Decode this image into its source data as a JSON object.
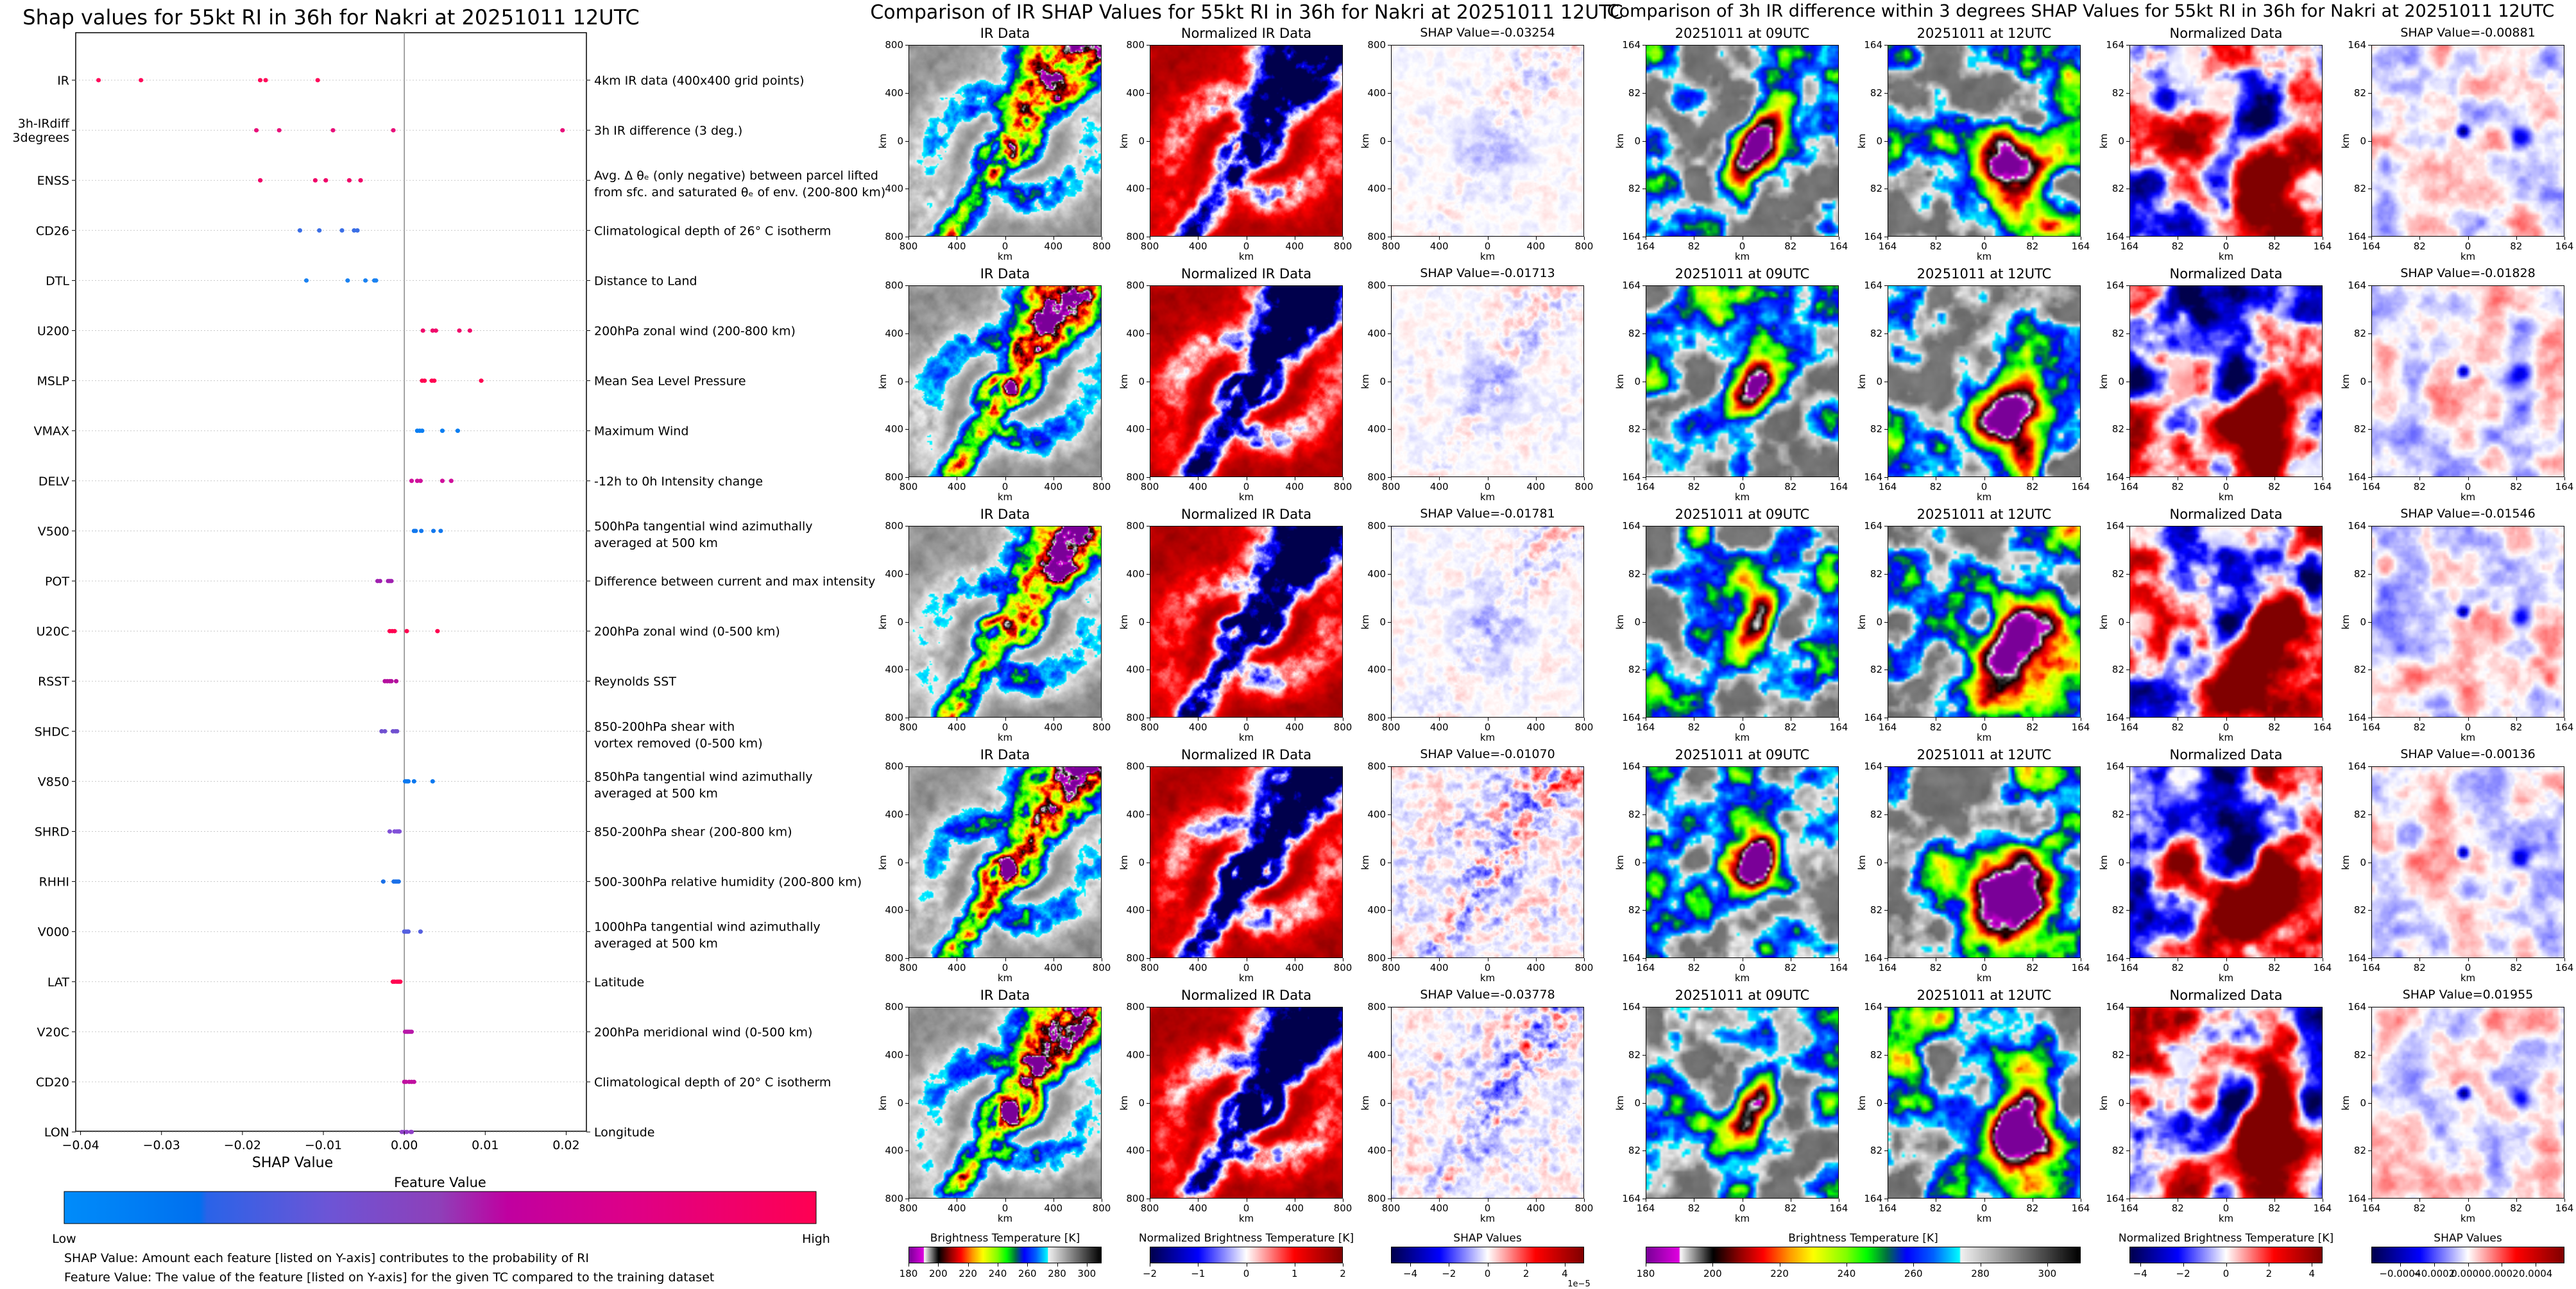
{
  "chart_data": {
    "type": "scatter",
    "title": "Shap values for 55kt RI in 36h for Nakri at 20251011 12UTC",
    "xlabel": "SHAP Value",
    "xlim": [
      -0.0406,
      0.0225
    ],
    "xticks": [
      -0.04,
      -0.03,
      -0.02,
      -0.01,
      0.0,
      0.01,
      0.02
    ],
    "xtick_labels": [
      "−0.04",
      "−0.03",
      "−0.02",
      "−0.01",
      "0.00",
      "0.01",
      "0.02"
    ],
    "zero_line": true,
    "grid": "dotted horizontal per feature",
    "features": [
      {
        "code": "IR",
        "description": [
          "4km IR data (400x400 grid points)"
        ],
        "color": "#ff0a5a",
        "shap_values": [
          -0.03778,
          -0.03254,
          -0.01781,
          -0.01713,
          -0.0107
        ]
      },
      {
        "code": "3h-IRdiff\n3degrees",
        "description": [
          "3h IR difference (3 deg.)"
        ],
        "color": "#e8107a",
        "shap_values": [
          -0.01828,
          -0.01546,
          -0.00881,
          -0.00136,
          0.01955
        ]
      },
      {
        "code": "ENSS",
        "description": [
          "Avg. Δ θₑ (only negative) between parcel lifted",
          "from sfc. and saturated θₑ of env. (200-800 km)"
        ],
        "color": "#f00068",
        "shap_values": [
          -0.0178,
          -0.011,
          -0.0097,
          -0.0068,
          -0.0054
        ]
      },
      {
        "code": "CD26",
        "description": [
          "Climatological depth of 26° C isotherm"
        ],
        "color": "#3a6ee6",
        "shap_values": [
          -0.0129,
          -0.0105,
          -0.0077,
          -0.0062,
          -0.0058
        ]
      },
      {
        "code": "DTL",
        "description": [
          "Distance to Land"
        ],
        "color": "#1a82f2",
        "shap_values": [
          -0.0121,
          -0.007,
          -0.0048,
          -0.0037,
          -0.0035
        ]
      },
      {
        "code": "U200",
        "description": [
          "200hPa zonal wind (200-800 km)"
        ],
        "color": "#f0086a",
        "shap_values": [
          0.0023,
          0.0035,
          0.0039,
          0.0068,
          0.0081
        ]
      },
      {
        "code": "MSLP",
        "description": [
          "Mean Sea Level Pressure"
        ],
        "color": "#ff0050",
        "shap_values": [
          0.0022,
          0.0025,
          0.0034,
          0.0037,
          0.0095
        ]
      },
      {
        "code": "VMAX",
        "description": [
          "Maximum Wind"
        ],
        "color": "#0a7ef2",
        "shap_values": [
          0.0016,
          0.0019,
          0.0022,
          0.0047,
          0.0066
        ]
      },
      {
        "code": "DELV",
        "description": [
          "-12h to 0h Intensity change"
        ],
        "color": "#d0109c",
        "shap_values": [
          0.0009,
          0.0016,
          0.002,
          0.0047,
          0.0058
        ]
      },
      {
        "code": "V500",
        "description": [
          "500hPa tangential wind azimuthally",
          "averaged at 500 km"
        ],
        "color": "#1278ee",
        "shap_values": [
          0.0012,
          0.0014,
          0.0021,
          0.0036,
          0.0045
        ]
      },
      {
        "code": "POT",
        "description": [
          "Difference between current and max intensity"
        ],
        "color": "#a020b0",
        "shap_values": [
          -0.0033,
          -0.003,
          -0.002,
          -0.0018,
          -0.0016
        ]
      },
      {
        "code": "U20C",
        "description": [
          "200hPa zonal wind (0-500 km)"
        ],
        "color": "#ff0050",
        "shap_values": [
          -0.0018,
          -0.0015,
          -0.0012,
          0.0003,
          0.0041
        ]
      },
      {
        "code": "RSST",
        "description": [
          "Reynolds SST"
        ],
        "color": "#b4109e",
        "shap_values": [
          -0.0024,
          -0.0021,
          -0.0018,
          -0.0016,
          -0.001
        ]
      },
      {
        "code": "SHDC",
        "description": [
          "850-200hPa shear with",
          "vortex removed (0-500 km)"
        ],
        "color": "#7050d0",
        "shap_values": [
          -0.0028,
          -0.0024,
          -0.0014,
          -0.0011,
          -0.0009
        ]
      },
      {
        "code": "V850",
        "description": [
          "850hPa tangential wind azimuthally",
          "averaged at 500 km"
        ],
        "color": "#0a78f0",
        "shap_values": [
          0.0001,
          0.0003,
          0.0005,
          0.0012,
          0.0035
        ]
      },
      {
        "code": "SHRD",
        "description": [
          "850-200hPa shear (200-800 km)"
        ],
        "color": "#8050d8",
        "shap_values": [
          -0.0018,
          -0.0012,
          -0.0009,
          -0.0007,
          -0.0006
        ]
      },
      {
        "code": "RHHI",
        "description": [
          "500-300hPa relative humidity (200-800 km)"
        ],
        "color": "#1a70e8",
        "shap_values": [
          -0.0026,
          -0.0013,
          -0.0011,
          -0.0009,
          -0.0007
        ]
      },
      {
        "code": "V000",
        "description": [
          "1000hPa tangential wind azimuthally",
          "averaged at 500 km"
        ],
        "color": "#5560e0",
        "shap_values": [
          0.0,
          0.0002,
          0.0004,
          0.0005,
          0.002
        ]
      },
      {
        "code": "LAT",
        "description": [
          "Latitude"
        ],
        "color": "#ff0050",
        "shap_values": [
          -0.0014,
          -0.0012,
          -0.0009,
          -0.0007,
          -0.0005
        ]
      },
      {
        "code": "V20C",
        "description": [
          "200hPa meridional wind (0-500 km)"
        ],
        "color": "#b818a8",
        "shap_values": [
          0.0001,
          0.0003,
          0.0005,
          0.0007,
          0.0009
        ]
      },
      {
        "code": "CD20",
        "description": [
          "Climatological depth of 20° C isotherm"
        ],
        "color": "#c010a0",
        "shap_values": [
          0.0,
          0.0002,
          0.0006,
          0.0009,
          0.0012
        ]
      },
      {
        "code": "LON",
        "description": [
          "Longitude"
        ],
        "color": "#9040c8",
        "shap_values": [
          -0.0003,
          0.0,
          0.0003,
          0.0008,
          0.0009
        ]
      }
    ],
    "colorbar": {
      "title": "Feature Value",
      "low_label": "Low",
      "high_label": "High",
      "colors": [
        "#008cfa",
        "#0070ef",
        "#2a63e8",
        "#6c55d6",
        "#8f3fb8",
        "#c000a0",
        "#dd0088",
        "#ff0052"
      ]
    },
    "notes": [
      "SHAP Value: Amount each feature [listed on Y-axis] contributes to the probability of RI",
      "Feature Value: The value of the feature [listed on Y-axis] for the given TC compared to the training dataset"
    ]
  },
  "ir_comparison": {
    "title": "Comparison of IR SHAP Values for 55kt RI in 36h for Nakri at 20251011 12UTC",
    "column_titles": [
      "IR Data",
      "Normalized IR Data"
    ],
    "shap_titles": [
      "SHAP Value=-0.03254",
      "SHAP Value=-0.01713",
      "SHAP Value=-0.01781",
      "SHAP Value=-0.01070",
      "SHAP Value=-0.03778"
    ],
    "axis_label": "km",
    "ticks": [
      "800",
      "400",
      "0",
      "400",
      "800"
    ],
    "colorbars": [
      {
        "title": "Brightness Temperature [K]",
        "cmap": "brightness-temperature",
        "range": [
          180,
          310
        ],
        "ticks": [
          180,
          200,
          220,
          240,
          260,
          280,
          300
        ],
        "tick_labels": [
          "180",
          "200",
          "220",
          "240",
          "260",
          "280",
          "300"
        ]
      },
      {
        "title": "Normalized Brightness Temperature [K]",
        "cmap": "seismic",
        "range": [
          -2,
          2
        ],
        "ticks": [
          -2,
          -1,
          0,
          1,
          2
        ],
        "tick_labels": [
          "−2",
          "−1",
          "0",
          "1",
          "2"
        ]
      },
      {
        "title": "SHAP Values",
        "cmap": "seismic",
        "range": [
          -5,
          5
        ],
        "ticks": [
          -4,
          -2,
          0,
          2,
          4
        ],
        "tick_labels": [
          "−4",
          "−2",
          "0",
          "2",
          "4"
        ],
        "offset_label": "1e−5"
      }
    ]
  },
  "irdiff_comparison": {
    "title": "Comparison of 3h IR difference within 3 degrees SHAP Values for 55kt RI in 36h for Nakri at 20251011 12UTC",
    "column_titles": [
      "20251011 at 09UTC",
      "20251011 at 12UTC",
      "Normalized Data"
    ],
    "shap_titles": [
      "SHAP Value=-0.00881",
      "SHAP Value=-0.01828",
      "SHAP Value=-0.01546",
      "SHAP Value=-0.00136",
      "SHAP Value=0.01955"
    ],
    "axis_label": "km",
    "ticks": [
      "164",
      "82",
      "0",
      "82",
      "164"
    ],
    "colorbars": [
      {
        "title": "Brightness Temperature [K]",
        "cmap": "brightness-temperature",
        "range": [
          180,
          310
        ],
        "ticks": [
          180,
          200,
          220,
          240,
          260,
          280,
          300
        ],
        "tick_labels": [
          "180",
          "200",
          "220",
          "240",
          "260",
          "280",
          "300"
        ]
      },
      {
        "title": "Normalized Brightness Temperature [K]",
        "cmap": "seismic",
        "range": [
          -4.5,
          4.5
        ],
        "ticks": [
          -4,
          -2,
          0,
          2,
          4
        ],
        "tick_labels": [
          "−4",
          "−2",
          "0",
          "2",
          "4"
        ]
      },
      {
        "title": "SHAP Values",
        "cmap": "seismic",
        "range": [
          -0.00057,
          0.00057
        ],
        "ticks": [
          -0.0004,
          -0.0002,
          0,
          0.0002,
          0.0004
        ],
        "tick_labels": [
          "−0.0004",
          "−0.0002",
          "0.0000",
          "0.0002",
          "0.0004"
        ]
      }
    ]
  }
}
